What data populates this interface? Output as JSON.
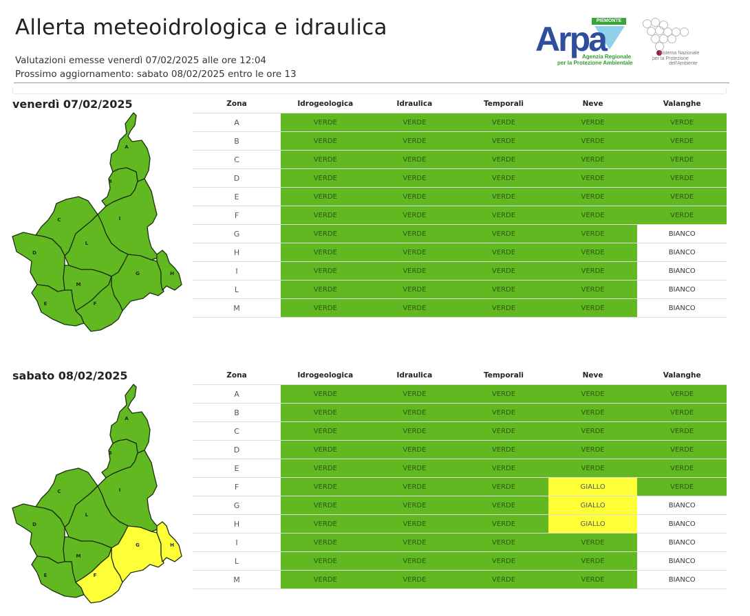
{
  "header": {
    "title": "Allerta meteoidrologica e idraulica",
    "issued": "Valutazioni emesse venerdì 07/02/2025 alle ore 12:04",
    "next_update": "Prossimo aggiornamento: sabato 08/02/2025 entro le ore 13"
  },
  "logos": {
    "arpa": {
      "badge": "PIEMONTE",
      "word": "Arpa",
      "line1": "Agenzia Regionale",
      "line2": "per la Protezione Ambientale"
    },
    "snpa": {
      "line1": "Sistema Nazionale",
      "line2": "per la Protezione",
      "line3": "dell'Ambiente"
    }
  },
  "colors": {
    "VERDE": "#62b821",
    "GIALLO": "#ffff38",
    "BIANCO": "#ffffff",
    "map_border": "#1a2e0f"
  },
  "columns": [
    "Zona",
    "Idrogeologica",
    "Idraulica",
    "Temporali",
    "Neve",
    "Valanghe"
  ],
  "days": [
    {
      "title": "venerdì 07/02/2025",
      "rows": [
        {
          "zona": "A",
          "values": [
            "VERDE",
            "VERDE",
            "VERDE",
            "VERDE",
            "VERDE"
          ]
        },
        {
          "zona": "B",
          "values": [
            "VERDE",
            "VERDE",
            "VERDE",
            "VERDE",
            "VERDE"
          ]
        },
        {
          "zona": "C",
          "values": [
            "VERDE",
            "VERDE",
            "VERDE",
            "VERDE",
            "VERDE"
          ]
        },
        {
          "zona": "D",
          "values": [
            "VERDE",
            "VERDE",
            "VERDE",
            "VERDE",
            "VERDE"
          ]
        },
        {
          "zona": "E",
          "values": [
            "VERDE",
            "VERDE",
            "VERDE",
            "VERDE",
            "VERDE"
          ]
        },
        {
          "zona": "F",
          "values": [
            "VERDE",
            "VERDE",
            "VERDE",
            "VERDE",
            "VERDE"
          ]
        },
        {
          "zona": "G",
          "values": [
            "VERDE",
            "VERDE",
            "VERDE",
            "VERDE",
            "BIANCO"
          ]
        },
        {
          "zona": "H",
          "values": [
            "VERDE",
            "VERDE",
            "VERDE",
            "VERDE",
            "BIANCO"
          ]
        },
        {
          "zona": "I",
          "values": [
            "VERDE",
            "VERDE",
            "VERDE",
            "VERDE",
            "BIANCO"
          ]
        },
        {
          "zona": "L",
          "values": [
            "VERDE",
            "VERDE",
            "VERDE",
            "VERDE",
            "BIANCO"
          ]
        },
        {
          "zona": "M",
          "values": [
            "VERDE",
            "VERDE",
            "VERDE",
            "VERDE",
            "BIANCO"
          ]
        }
      ],
      "map_zones": {
        "A": "VERDE",
        "B": "VERDE",
        "C": "VERDE",
        "D": "VERDE",
        "E": "VERDE",
        "F": "VERDE",
        "G": "VERDE",
        "H": "VERDE",
        "I": "VERDE",
        "L": "VERDE",
        "M": "VERDE"
      }
    },
    {
      "title": "sabato 08/02/2025",
      "rows": [
        {
          "zona": "A",
          "values": [
            "VERDE",
            "VERDE",
            "VERDE",
            "VERDE",
            "VERDE"
          ]
        },
        {
          "zona": "B",
          "values": [
            "VERDE",
            "VERDE",
            "VERDE",
            "VERDE",
            "VERDE"
          ]
        },
        {
          "zona": "C",
          "values": [
            "VERDE",
            "VERDE",
            "VERDE",
            "VERDE",
            "VERDE"
          ]
        },
        {
          "zona": "D",
          "values": [
            "VERDE",
            "VERDE",
            "VERDE",
            "VERDE",
            "VERDE"
          ]
        },
        {
          "zona": "E",
          "values": [
            "VERDE",
            "VERDE",
            "VERDE",
            "VERDE",
            "VERDE"
          ]
        },
        {
          "zona": "F",
          "values": [
            "VERDE",
            "VERDE",
            "VERDE",
            "GIALLO",
            "VERDE"
          ]
        },
        {
          "zona": "G",
          "values": [
            "VERDE",
            "VERDE",
            "VERDE",
            "GIALLO",
            "BIANCO"
          ]
        },
        {
          "zona": "H",
          "values": [
            "VERDE",
            "VERDE",
            "VERDE",
            "GIALLO",
            "BIANCO"
          ]
        },
        {
          "zona": "I",
          "values": [
            "VERDE",
            "VERDE",
            "VERDE",
            "VERDE",
            "BIANCO"
          ]
        },
        {
          "zona": "L",
          "values": [
            "VERDE",
            "VERDE",
            "VERDE",
            "VERDE",
            "BIANCO"
          ]
        },
        {
          "zona": "M",
          "values": [
            "VERDE",
            "VERDE",
            "VERDE",
            "VERDE",
            "BIANCO"
          ]
        }
      ],
      "map_zones": {
        "A": "VERDE",
        "B": "VERDE",
        "C": "VERDE",
        "D": "VERDE",
        "E": "VERDE",
        "F": "GIALLO",
        "G": "GIALLO",
        "H": "GIALLO",
        "I": "VERDE",
        "L": "VERDE",
        "M": "VERDE"
      }
    }
  ]
}
